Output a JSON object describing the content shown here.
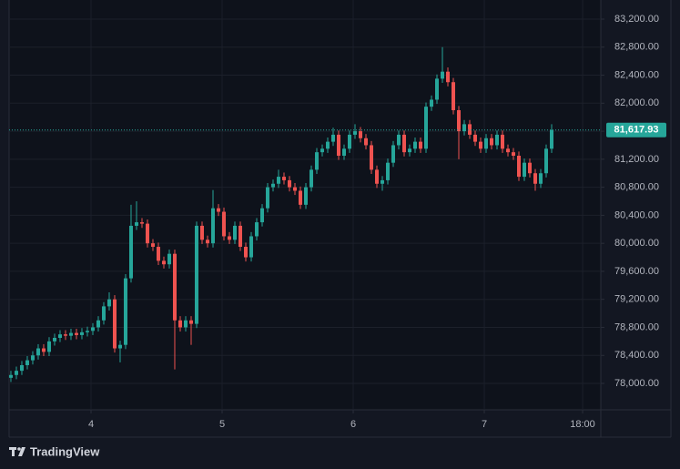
{
  "chart_data": {
    "type": "candlestick",
    "up_color": "#26a69a",
    "down_color": "#ef5350",
    "grid": true,
    "ylim": [
      77623,
      83473
    ],
    "yticks": [
      {
        "value": 78000,
        "label": "78,000.00"
      },
      {
        "value": 78400,
        "label": "78,400.00"
      },
      {
        "value": 78800,
        "label": "78,800.00"
      },
      {
        "value": 79200,
        "label": "79,200.00"
      },
      {
        "value": 79600,
        "label": "79,600.00"
      },
      {
        "value": 80000,
        "label": "80,000.00"
      },
      {
        "value": 80400,
        "label": "80,400.00"
      },
      {
        "value": 80800,
        "label": "80,800.00"
      },
      {
        "value": 81200,
        "label": "81,200.00"
      },
      {
        "value": 81600,
        "label": "81,600.00"
      },
      {
        "value": 82000,
        "label": "82,000.00"
      },
      {
        "value": 82400,
        "label": "82,400.00"
      },
      {
        "value": 82800,
        "label": "82,800.00"
      },
      {
        "value": 83200,
        "label": "83,200.00"
      }
    ],
    "xlim": [
      -0.33,
      108
    ],
    "xticks": [
      {
        "value": 14.67,
        "label": "4"
      },
      {
        "value": 38.67,
        "label": "5"
      },
      {
        "value": 62.67,
        "label": "6"
      },
      {
        "value": 86.67,
        "label": "7"
      },
      {
        "value": 104.67,
        "label": "18:00"
      }
    ],
    "last_price_label": "81,617.93",
    "open": [
      78080,
      78120,
      78180,
      78260,
      78330,
      78400,
      78500,
      78450,
      78600,
      78650,
      78700,
      78680,
      78720,
      78690,
      78730,
      78750,
      78800,
      78900,
      79100,
      79200,
      78500,
      78550,
      79500,
      80250,
      80300,
      80280,
      80000,
      79950,
      79750,
      79700,
      79850,
      78900,
      78800,
      78900,
      78850,
      80250,
      80050,
      80000,
      80500,
      80450,
      80100,
      80050,
      80250,
      79950,
      79800,
      80100,
      80300,
      80500,
      80800,
      80850,
      80950,
      80900,
      80800,
      80750,
      80550,
      80800,
      81050,
      81300,
      81350,
      81450,
      81550,
      81250,
      81350,
      81550,
      81600,
      81500,
      81400,
      81050,
      80850,
      80900,
      81150,
      81400,
      81550,
      81300,
      81350,
      81450,
      81350,
      81950,
      82050,
      82350,
      82450,
      82300,
      81900,
      81600,
      81700,
      81550,
      81450,
      81350,
      81500,
      81400,
      81550,
      81350,
      81300,
      81250,
      80950,
      81150,
      81000,
      80850,
      81000,
      81350
    ],
    "high": [
      78180,
      78240,
      78320,
      78390,
      78460,
      78560,
      78560,
      78660,
      78710,
      78760,
      78760,
      78780,
      78780,
      78790,
      78810,
      78860,
      78960,
      79160,
      79300,
      79260,
      78610,
      79560,
      80550,
      80600,
      80360,
      80340,
      80060,
      80010,
      79810,
      79910,
      79910,
      78960,
      78960,
      78960,
      80310,
      80310,
      80110,
      80760,
      80560,
      80510,
      80160,
      80310,
      80310,
      80010,
      80160,
      80360,
      80560,
      80860,
      80910,
      81050,
      81010,
      80960,
      80860,
      80810,
      80860,
      81110,
      81360,
      81410,
      81510,
      81650,
      81610,
      81410,
      81610,
      81700,
      81660,
      81560,
      81460,
      81110,
      80960,
      81210,
      81460,
      81610,
      81610,
      81410,
      81510,
      81510,
      82010,
      82110,
      82410,
      82800,
      82510,
      82360,
      81960,
      81760,
      81760,
      81610,
      81510,
      81560,
      81560,
      81610,
      81610,
      81410,
      81360,
      81310,
      81210,
      81210,
      81060,
      81060,
      81410,
      81700
    ],
    "low": [
      78020,
      78060,
      78120,
      78200,
      78270,
      78340,
      78390,
      78390,
      78540,
      78590,
      78620,
      78620,
      78630,
      78630,
      78670,
      78690,
      78740,
      78840,
      79040,
      78440,
      78300,
      78490,
      79440,
      80190,
      80220,
      79940,
      79890,
      79690,
      79640,
      79640,
      78200,
      78740,
      78740,
      78550,
      78790,
      79990,
      79940,
      79940,
      80390,
      80040,
      79990,
      79990,
      79890,
      79740,
      79740,
      80040,
      80240,
      80440,
      80740,
      80790,
      80840,
      80740,
      80690,
      80490,
      80490,
      80740,
      80990,
      81240,
      81290,
      81390,
      81190,
      81190,
      81290,
      81490,
      81440,
      81340,
      80990,
      80790,
      80750,
      80840,
      81090,
      81340,
      81240,
      81240,
      81290,
      81290,
      81290,
      81890,
      81990,
      82290,
      82240,
      81840,
      81200,
      81540,
      81490,
      81390,
      81290,
      81290,
      81340,
      81340,
      81290,
      81240,
      81190,
      80890,
      80890,
      80940,
      80750,
      80790,
      80940,
      81290
    ],
    "close": [
      78120,
      78180,
      78260,
      78330,
      78400,
      78500,
      78450,
      78600,
      78650,
      78700,
      78680,
      78720,
      78690,
      78730,
      78750,
      78800,
      78900,
      79100,
      79200,
      78500,
      78550,
      79500,
      80250,
      80300,
      80280,
      80000,
      79950,
      79750,
      79700,
      79850,
      78900,
      78800,
      78900,
      78850,
      80250,
      80050,
      80000,
      80500,
      80450,
      80100,
      80050,
      80250,
      79950,
      79800,
      80100,
      80300,
      80500,
      80800,
      80850,
      80950,
      80900,
      80800,
      80750,
      80550,
      80800,
      81050,
      81300,
      81350,
      81450,
      81550,
      81250,
      81350,
      81550,
      81600,
      81500,
      81400,
      81050,
      80850,
      80900,
      81150,
      81400,
      81550,
      81300,
      81350,
      81450,
      81350,
      81950,
      82050,
      82350,
      82450,
      82300,
      81900,
      81600,
      81700,
      81550,
      81450,
      81350,
      81500,
      81400,
      81550,
      81350,
      81300,
      81250,
      80950,
      81150,
      81000,
      80850,
      81000,
      81350,
      81617.93
    ]
  },
  "brand": "TradingView"
}
